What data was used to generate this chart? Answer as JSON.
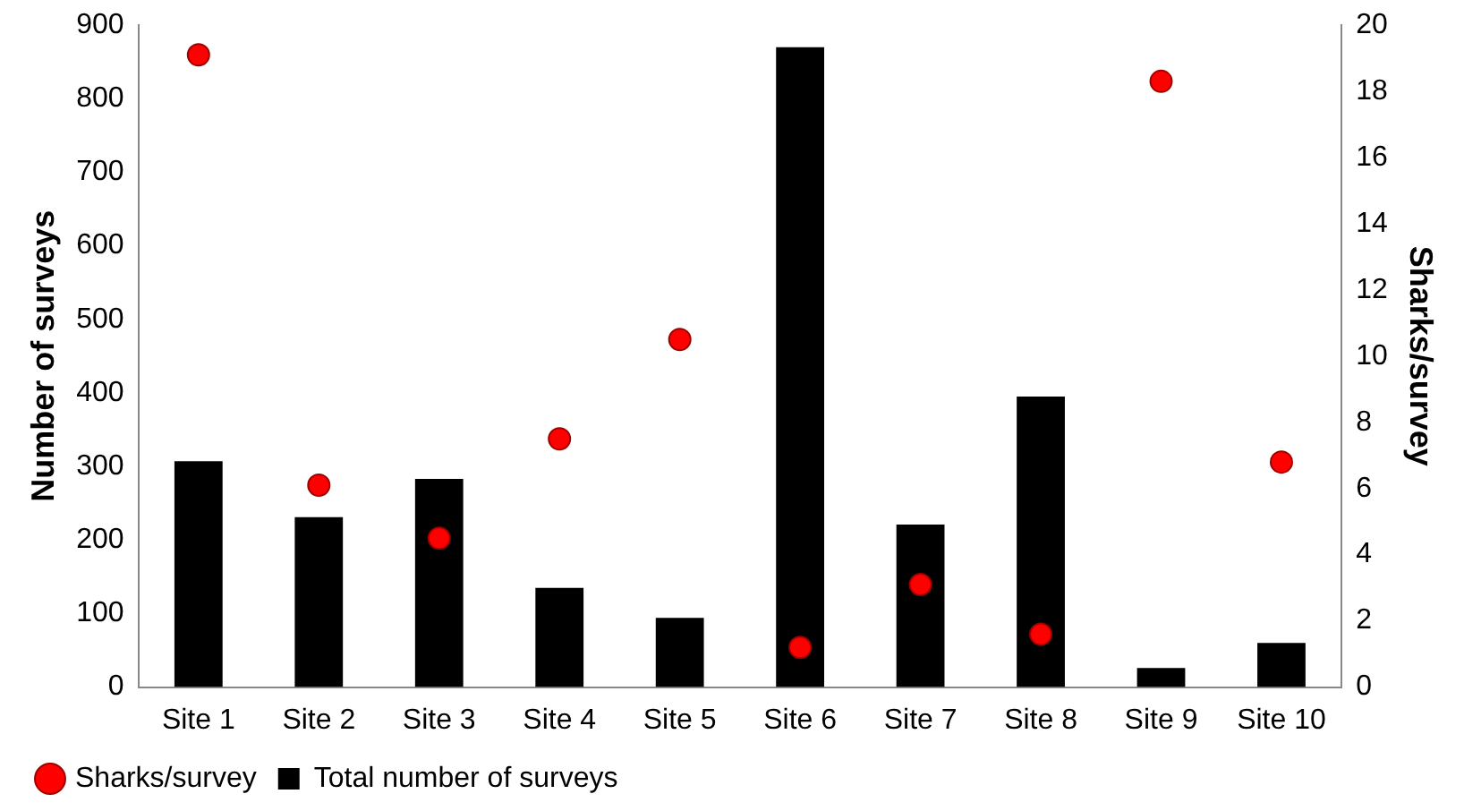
{
  "chart_data": {
    "type": "bar",
    "categories": [
      "Site 1",
      "Site 2",
      "Site 3",
      "Site 4",
      "Site 5",
      "Site 6",
      "Site 7",
      "Site 8",
      "Site 9",
      "Site 10"
    ],
    "series": [
      {
        "name": "Total number of surveys",
        "color": "#000000",
        "values": [
          307,
          231,
          283,
          135,
          94,
          870,
          221,
          395,
          26,
          60
        ]
      },
      {
        "name": "Sharks/survey",
        "type": "scatter",
        "axis": "y2",
        "color": "#ff0000",
        "x": [
          "Site 1",
          "Site 2",
          "Site 3",
          "Site 4",
          "Site 5",
          "Site 6",
          "Site 7",
          "Site 8",
          "Site 9",
          "Site 10"
        ],
        "values": [
          19.1,
          6.1,
          4.5,
          7.5,
          10.5,
          1.2,
          3.1,
          1.6,
          18.3,
          6.8
        ]
      }
    ],
    "ylabel": "Number of surveys",
    "y2label": "Sharks/survey",
    "ylim": [
      0,
      900
    ],
    "yticks": [
      0,
      100,
      200,
      300,
      400,
      500,
      600,
      700,
      800,
      900
    ],
    "y2lim": [
      0,
      20
    ],
    "y2ticks": [
      0,
      2,
      4,
      6,
      8,
      10,
      12,
      14,
      16,
      18,
      20
    ],
    "grid": false,
    "legend": "bottom",
    "marker": "circle"
  }
}
